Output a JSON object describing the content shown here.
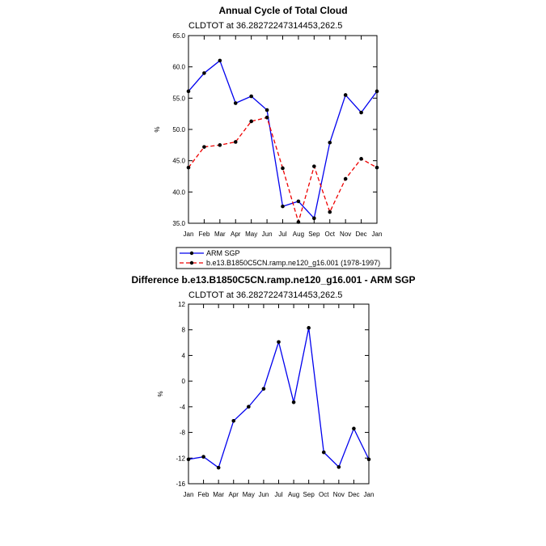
{
  "chart_data": [
    {
      "type": "line",
      "title": "Annual Cycle of Total Cloud",
      "subtitle": "CLDTOT at 36.28272247314453,262.5",
      "xlabel": "",
      "ylabel": "%",
      "categories": [
        "Jan",
        "Feb",
        "Mar",
        "Apr",
        "May",
        "Jun",
        "Jul",
        "Aug",
        "Sep",
        "Oct",
        "Nov",
        "Dec",
        "Jan"
      ],
      "ylim": [
        35.0,
        65.0
      ],
      "yticks": [
        "35.0",
        "40.0",
        "45.0",
        "50.0",
        "55.0",
        "60.0",
        "65.0"
      ],
      "series": [
        {
          "name": "ARM SGP",
          "color": "#0000ee",
          "dash": "solid",
          "values": [
            56.1,
            59.0,
            61.0,
            54.2,
            55.3,
            53.1,
            37.7,
            38.5,
            35.8,
            47.9,
            55.5,
            52.7,
            56.1
          ]
        },
        {
          "name": "b.e13.B1850C5CN.ramp.ne120_g16.001 (1978-1997)",
          "color": "#ee0000",
          "dash": "dashed",
          "values": [
            43.9,
            47.2,
            47.5,
            48.0,
            51.3,
            51.9,
            43.8,
            35.2,
            44.1,
            36.8,
            42.1,
            45.3,
            43.9
          ]
        }
      ],
      "legend": "bottom"
    },
    {
      "type": "line",
      "title": "Difference b.e13.B1850C5CN.ramp.ne120_g16.001 - ARM SGP",
      "subtitle": "CLDTOT at 36.28272247314453,262.5",
      "xlabel": "",
      "ylabel": "%",
      "categories": [
        "Jan",
        "Feb",
        "Mar",
        "Apr",
        "May",
        "Jun",
        "Jul",
        "Aug",
        "Sep",
        "Oct",
        "Nov",
        "Dec",
        "Jan"
      ],
      "ylim": [
        -16,
        12
      ],
      "yticks": [
        "-16",
        "-12",
        "-8",
        "-4",
        "0",
        "4",
        "8",
        "12"
      ],
      "series": [
        {
          "name": "Difference",
          "color": "#0000ee",
          "dash": "solid",
          "values": [
            -12.2,
            -11.8,
            -13.5,
            -6.2,
            -4.0,
            -1.2,
            6.1,
            -3.3,
            8.3,
            -11.1,
            -13.4,
            -7.4,
            -12.2
          ]
        }
      ]
    }
  ]
}
